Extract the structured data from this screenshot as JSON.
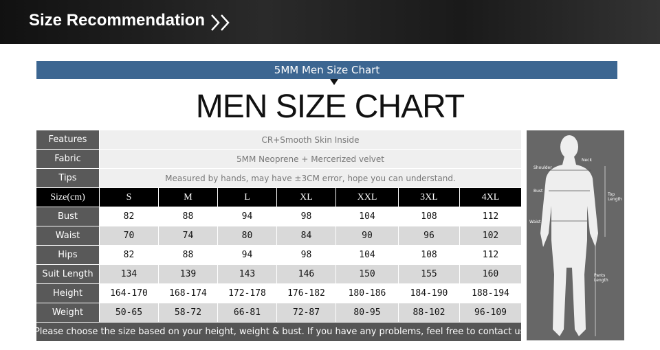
{
  "header": {
    "title": "Size Recommendation"
  },
  "banner": {
    "label": "5MM Men Size Chart"
  },
  "heading": "MEN SIZE CHART",
  "table": {
    "info": [
      {
        "label": "Features",
        "value": "CR+Smooth Skin Inside"
      },
      {
        "label": "Fabric",
        "value": "5MM Neoprene + Mercerized velvet"
      },
      {
        "label": "Tips",
        "value": "Measured by hands, may have ±3CM error, hope you can understand."
      }
    ],
    "size_header": {
      "label": "Size(cm)",
      "sizes": [
        "S",
        "M",
        "L",
        "XL",
        "XXL",
        "3XL",
        "4XL"
      ]
    },
    "rows": [
      {
        "label": "Bust",
        "values": [
          "82",
          "88",
          "94",
          "98",
          "104",
          "108",
          "112"
        ]
      },
      {
        "label": "Waist",
        "values": [
          "70",
          "74",
          "80",
          "84",
          "90",
          "96",
          "102"
        ]
      },
      {
        "label": "Hips",
        "values": [
          "82",
          "88",
          "94",
          "98",
          "104",
          "108",
          "112"
        ]
      },
      {
        "label": "Suit Length",
        "values": [
          "134",
          "139",
          "143",
          "146",
          "150",
          "155",
          "160"
        ]
      },
      {
        "label": "Height",
        "values": [
          "164-170",
          "168-174",
          "172-178",
          "176-182",
          "180-186",
          "184-190",
          "188-194"
        ]
      },
      {
        "label": "Weight",
        "values": [
          "50-65",
          "58-72",
          "66-81",
          "72-87",
          "80-95",
          "88-102",
          "96-109"
        ]
      }
    ],
    "note": "*Please choose the size based on your height, weight & bust. If you have any problems, feel free to contact us."
  },
  "figure": {
    "labels": {
      "neck": "Neck",
      "shoulder": "Shoulder",
      "bust": "Bust",
      "waist": "Waist",
      "top_length": "Top Length",
      "pants_length": "Pants Length"
    }
  }
}
